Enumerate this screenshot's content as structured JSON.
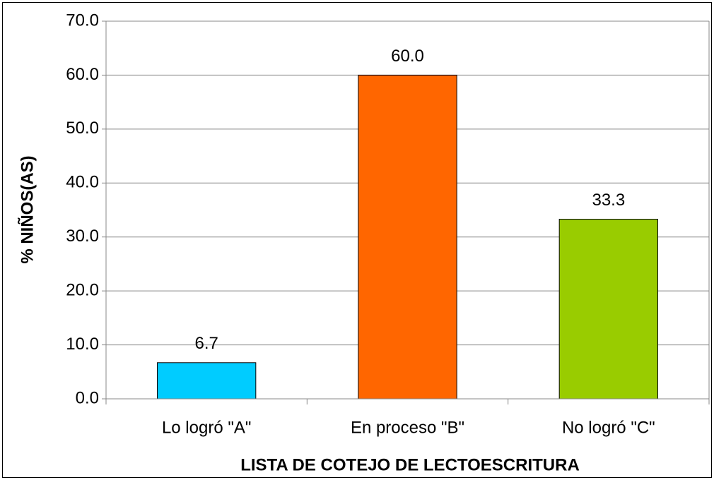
{
  "chart_data": {
    "type": "bar",
    "categories": [
      "Lo logró \"A\"",
      "En proceso \"B\"",
      "No logró \"C\""
    ],
    "values": [
      6.7,
      60,
      33.3
    ],
    "value_labels": [
      "6.7",
      "60.0",
      "33.3"
    ],
    "colors": [
      "#00ccff",
      "#ff6600",
      "#99cc00"
    ],
    "xlabel": "LISTA DE COTEJO DE LECTOESCRITURA",
    "ylabel": "% NIÑOS(AS)",
    "ylim": [
      0,
      70
    ],
    "yticks": [
      {
        "value": 0,
        "label": "0.0"
      },
      {
        "value": 10,
        "label": "10.0"
      },
      {
        "value": 20,
        "label": "20.0"
      },
      {
        "value": 30,
        "label": "30.0"
      },
      {
        "value": 40,
        "label": "40.0"
      },
      {
        "value": 50,
        "label": "50.0"
      },
      {
        "value": 60,
        "label": "60.0"
      },
      {
        "value": 70,
        "label": "70.0"
      }
    ],
    "grid": true
  }
}
